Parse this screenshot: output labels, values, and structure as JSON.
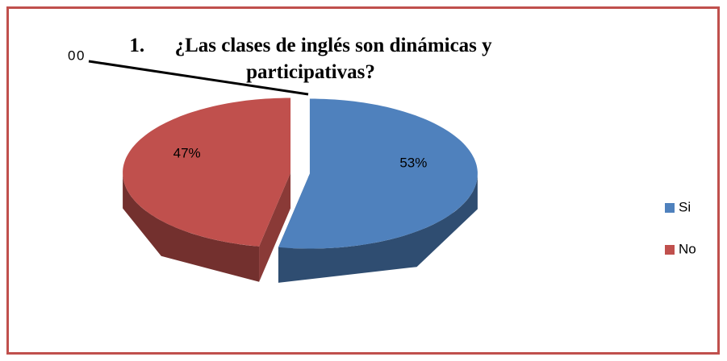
{
  "chart_data": {
    "type": "pie",
    "title": "1.      ¿Las clases de inglés son dinámicas y participativas?",
    "categories": [
      "Si",
      "No",
      null,
      null
    ],
    "values": [
      53,
      47,
      0,
      0
    ],
    "value_labels": [
      "53%",
      "47%",
      "0",
      "0"
    ],
    "colors": [
      "#4f81bd",
      "#c0504d"
    ],
    "legend": "right"
  }
}
